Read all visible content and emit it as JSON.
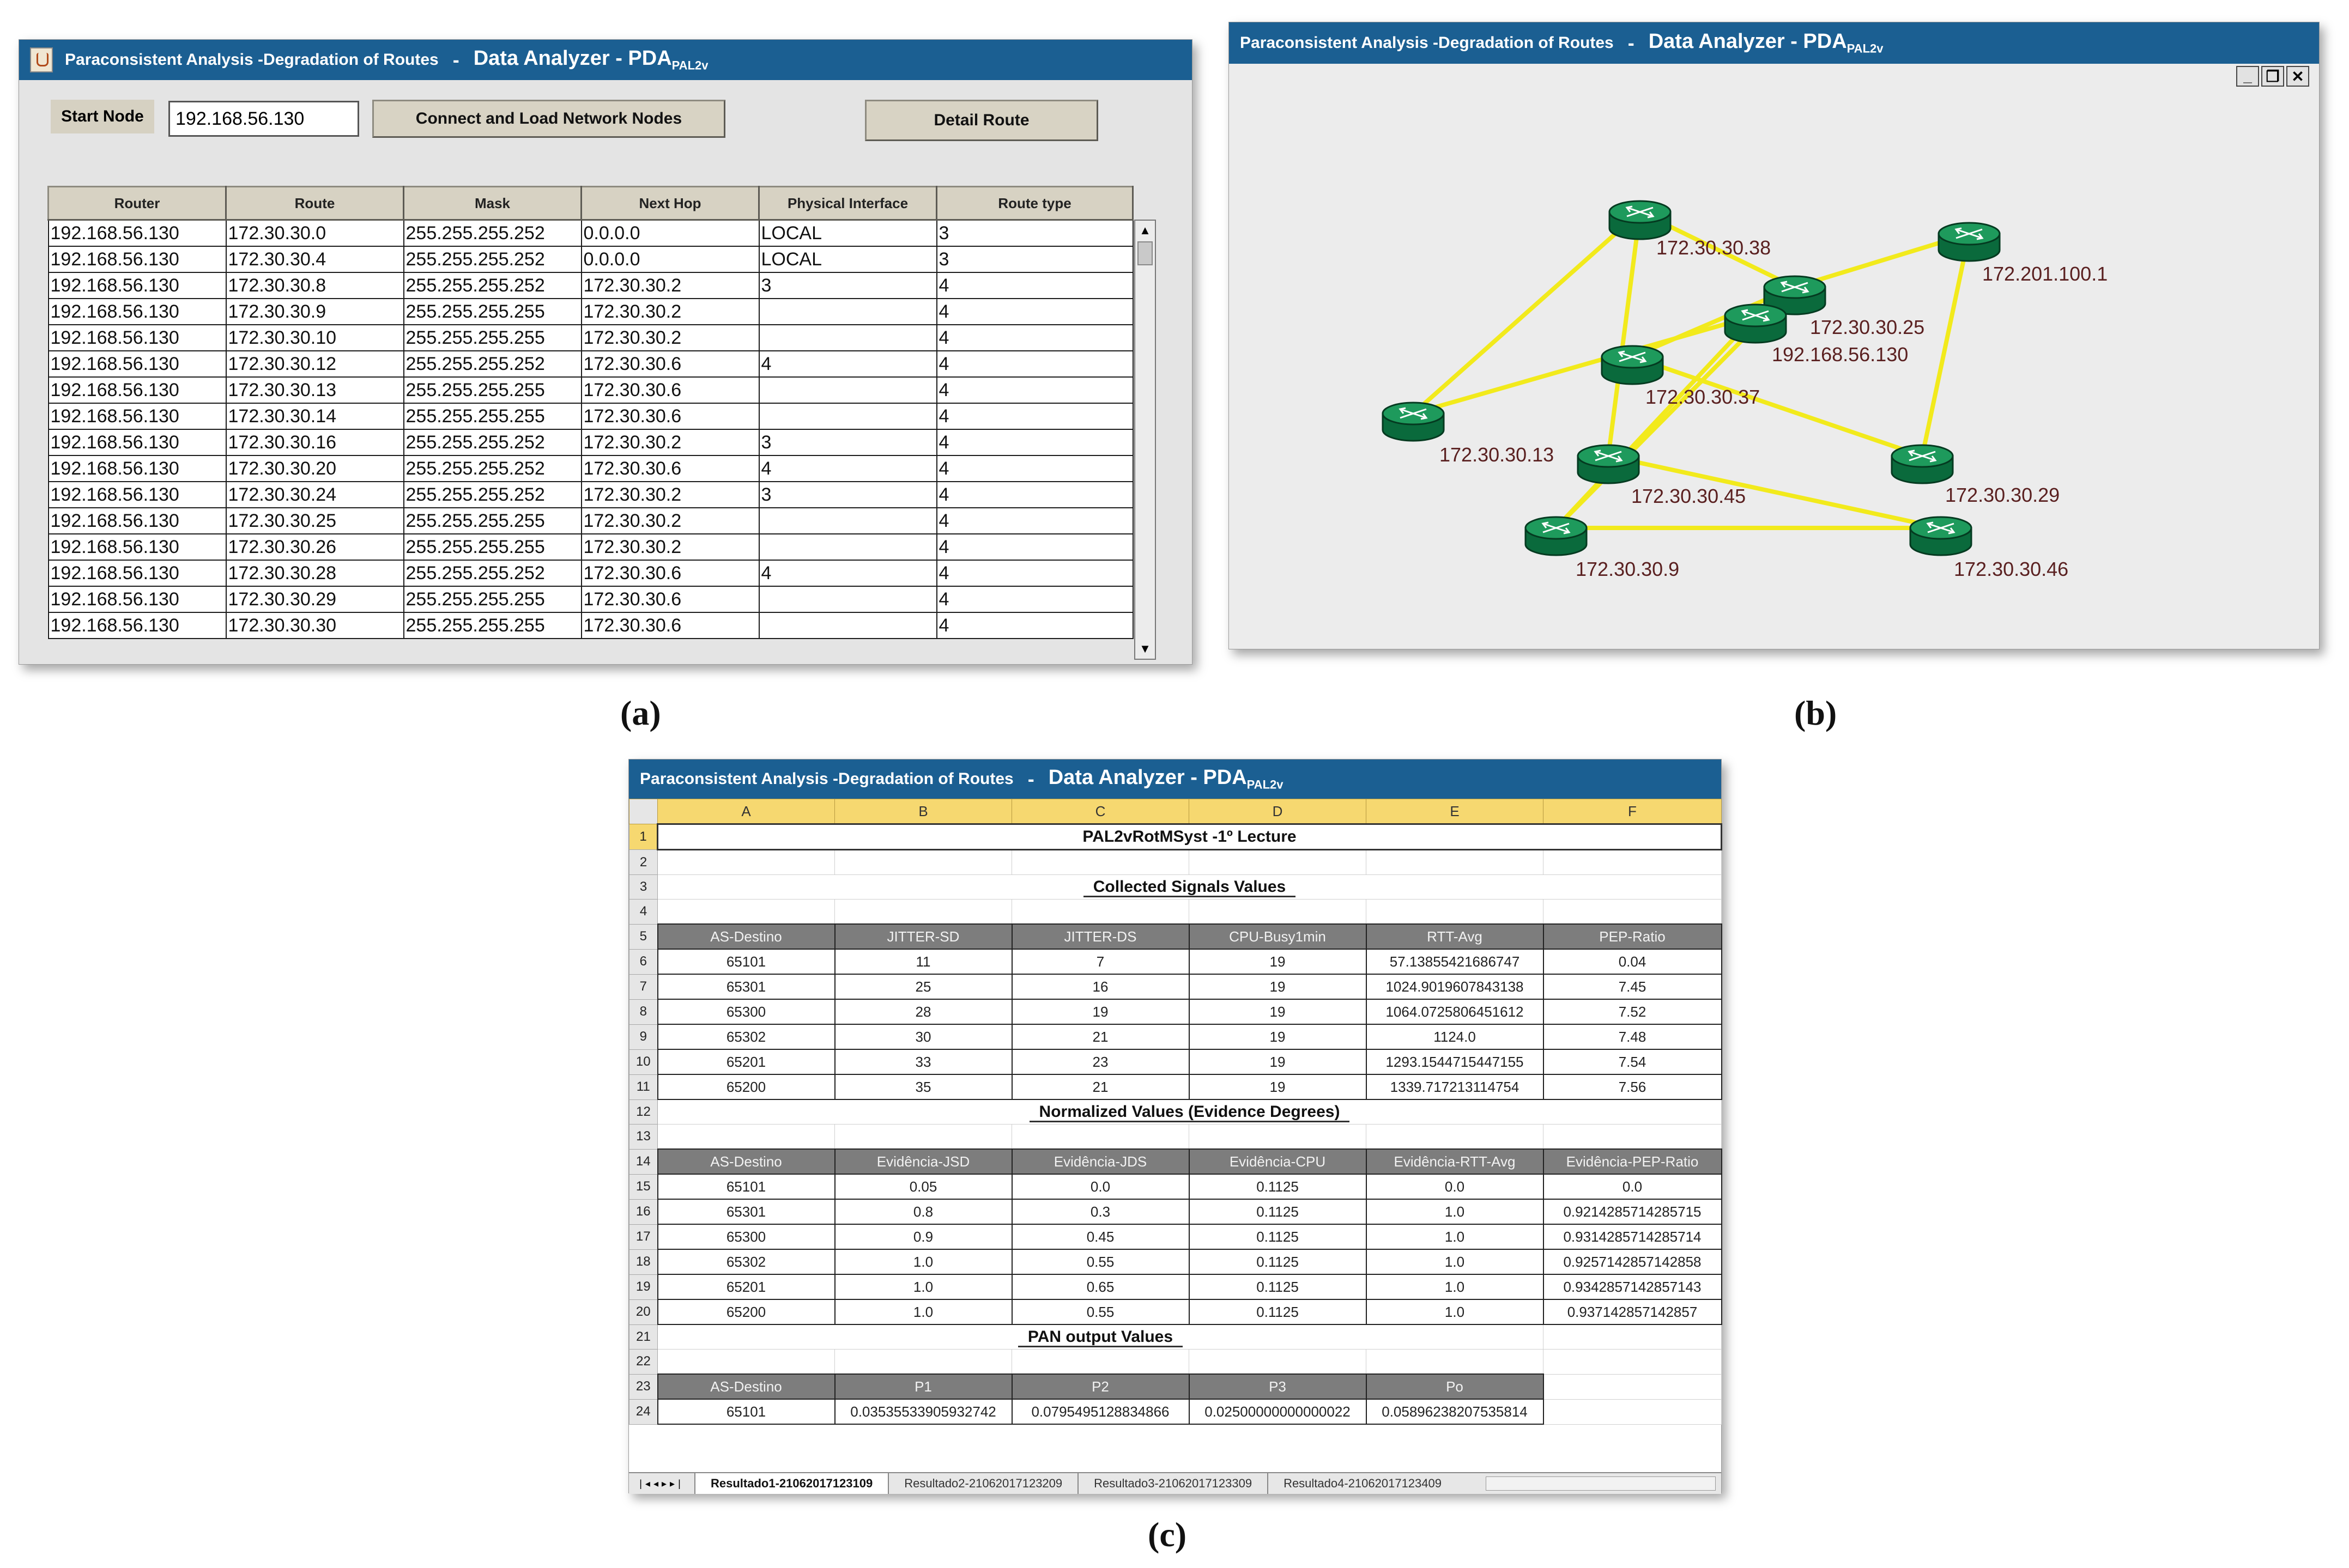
{
  "app_title": {
    "main": "Paraconsistent Analysis -Degradation of Routes",
    "separator": "-",
    "app": "Data Analyzer - PDA",
    "app_sub": "PAL2v"
  },
  "captions": {
    "a": "(a)",
    "b": "(b)",
    "c": "(c)"
  },
  "panel_a": {
    "start_node_label": "Start Node",
    "start_node_value": "192.168.56.130",
    "connect_button": "Connect and Load Network Nodes",
    "detail_button": "Detail Route",
    "columns": [
      "Router",
      "Route",
      "Mask",
      "Next Hop",
      "Physical Interface",
      "Route type"
    ],
    "rows": [
      [
        "192.168.56.130",
        "172.30.30.0",
        "255.255.255.252",
        "0.0.0.0",
        "LOCAL",
        "3"
      ],
      [
        "192.168.56.130",
        "172.30.30.4",
        "255.255.255.252",
        "0.0.0.0",
        "LOCAL",
        "3"
      ],
      [
        "192.168.56.130",
        "172.30.30.8",
        "255.255.255.252",
        "172.30.30.2",
        "3",
        "4"
      ],
      [
        "192.168.56.130",
        "172.30.30.9",
        "255.255.255.255",
        "172.30.30.2",
        "",
        "4"
      ],
      [
        "192.168.56.130",
        "172.30.30.10",
        "255.255.255.255",
        "172.30.30.2",
        "",
        "4"
      ],
      [
        "192.168.56.130",
        "172.30.30.12",
        "255.255.255.252",
        "172.30.30.6",
        "4",
        "4"
      ],
      [
        "192.168.56.130",
        "172.30.30.13",
        "255.255.255.255",
        "172.30.30.6",
        "",
        "4"
      ],
      [
        "192.168.56.130",
        "172.30.30.14",
        "255.255.255.255",
        "172.30.30.6",
        "",
        "4"
      ],
      [
        "192.168.56.130",
        "172.30.30.16",
        "255.255.255.252",
        "172.30.30.2",
        "3",
        "4"
      ],
      [
        "192.168.56.130",
        "172.30.30.20",
        "255.255.255.252",
        "172.30.30.6",
        "4",
        "4"
      ],
      [
        "192.168.56.130",
        "172.30.30.24",
        "255.255.255.252",
        "172.30.30.2",
        "3",
        "4"
      ],
      [
        "192.168.56.130",
        "172.30.30.25",
        "255.255.255.255",
        "172.30.30.2",
        "",
        "4"
      ],
      [
        "192.168.56.130",
        "172.30.30.26",
        "255.255.255.255",
        "172.30.30.2",
        "",
        "4"
      ],
      [
        "192.168.56.130",
        "172.30.30.28",
        "255.255.255.252",
        "172.30.30.6",
        "4",
        "4"
      ],
      [
        "192.168.56.130",
        "172.30.30.29",
        "255.255.255.255",
        "172.30.30.6",
        "",
        "4"
      ],
      [
        "192.168.56.130",
        "172.30.30.30",
        "255.255.255.255",
        "172.30.30.6",
        "",
        "4"
      ]
    ]
  },
  "panel_b": {
    "window_controls": [
      "_",
      "❐",
      "✕"
    ],
    "nodes": [
      {
        "id": "n38",
        "label": "172.30.30.38"
      },
      {
        "id": "n201",
        "label": "172.201.100.1"
      },
      {
        "id": "n25",
        "label": "172.30.30.25"
      },
      {
        "id": "n192",
        "label": "192.168.56.130"
      },
      {
        "id": "n37",
        "label": "172.30.30.37"
      },
      {
        "id": "n13",
        "label": "172.30.30.13"
      },
      {
        "id": "n45",
        "label": "172.30.30.45"
      },
      {
        "id": "n29",
        "label": "172.30.30.29"
      },
      {
        "id": "n9",
        "label": "172.30.30.9"
      },
      {
        "id": "n46",
        "label": "172.30.30.46"
      }
    ],
    "links": [
      [
        "n38",
        "n13"
      ],
      [
        "n38",
        "n25"
      ],
      [
        "n38",
        "n45"
      ],
      [
        "n25",
        "n201"
      ],
      [
        "n201",
        "n29"
      ],
      [
        "n37",
        "n25"
      ],
      [
        "n37",
        "n29"
      ],
      [
        "n13",
        "n192"
      ],
      [
        "n192",
        "n9"
      ],
      [
        "n25",
        "n9"
      ],
      [
        "n45",
        "n46"
      ],
      [
        "n9",
        "n46"
      ]
    ]
  },
  "panel_c": {
    "col_letters": [
      "A",
      "B",
      "C",
      "D",
      "E",
      "F"
    ],
    "title": "PAL2vRotMSyst  -1º Lecture",
    "section1": "Collected Signals Values",
    "section2": "Normalized Values  (Evidence Degrees)",
    "section3": "PAN output Values",
    "table1": {
      "headers": [
        "AS-Destino",
        "JITTER-SD",
        "JITTER-DS",
        "CPU-Busy1min",
        "RTT-Avg",
        "PEP-Ratio"
      ],
      "rows": [
        [
          "65101",
          "11",
          "7",
          "19",
          "57.13855421686747",
          "0.04"
        ],
        [
          "65301",
          "25",
          "16",
          "19",
          "1024.9019607843138",
          "7.45"
        ],
        [
          "65300",
          "28",
          "19",
          "19",
          "1064.0725806451612",
          "7.52"
        ],
        [
          "65302",
          "30",
          "21",
          "19",
          "1124.0",
          "7.48"
        ],
        [
          "65201",
          "33",
          "23",
          "19",
          "1293.1544715447155",
          "7.54"
        ],
        [
          "65200",
          "35",
          "21",
          "19",
          "1339.717213114754",
          "7.56"
        ]
      ]
    },
    "table2": {
      "headers": [
        "AS-Destino",
        "Evidência-JSD",
        "Evidência-JDS",
        "Evidência-CPU",
        "Evidência-RTT-Avg",
        "Evidência-PEP-Ratio"
      ],
      "rows": [
        [
          "65101",
          "0.05",
          "0.0",
          "0.1125",
          "0.0",
          "0.0"
        ],
        [
          "65301",
          "0.8",
          "0.3",
          "0.1125",
          "1.0",
          "0.9214285714285715"
        ],
        [
          "65300",
          "0.9",
          "0.45",
          "0.1125",
          "1.0",
          "0.9314285714285714"
        ],
        [
          "65302",
          "1.0",
          "0.55",
          "0.1125",
          "1.0",
          "0.9257142857142858"
        ],
        [
          "65201",
          "1.0",
          "0.65",
          "0.1125",
          "1.0",
          "0.9342857142857143"
        ],
        [
          "65200",
          "1.0",
          "0.55",
          "0.1125",
          "1.0",
          "0.937142857142857"
        ]
      ]
    },
    "table3": {
      "headers": [
        "AS-Destino",
        "P1",
        "P2",
        "P3",
        "Po"
      ],
      "rows": [
        [
          "65101",
          "0.03535533905932742",
          "0.0795495128834866",
          "0.02500000000000022",
          "0.05896238207535814"
        ]
      ]
    },
    "sheet_tabs": [
      "Resultado1-21062017123109",
      "Resultado2-21062017123209",
      "Resultado3-21062017123309",
      "Resultado4-21062017123409"
    ]
  }
}
